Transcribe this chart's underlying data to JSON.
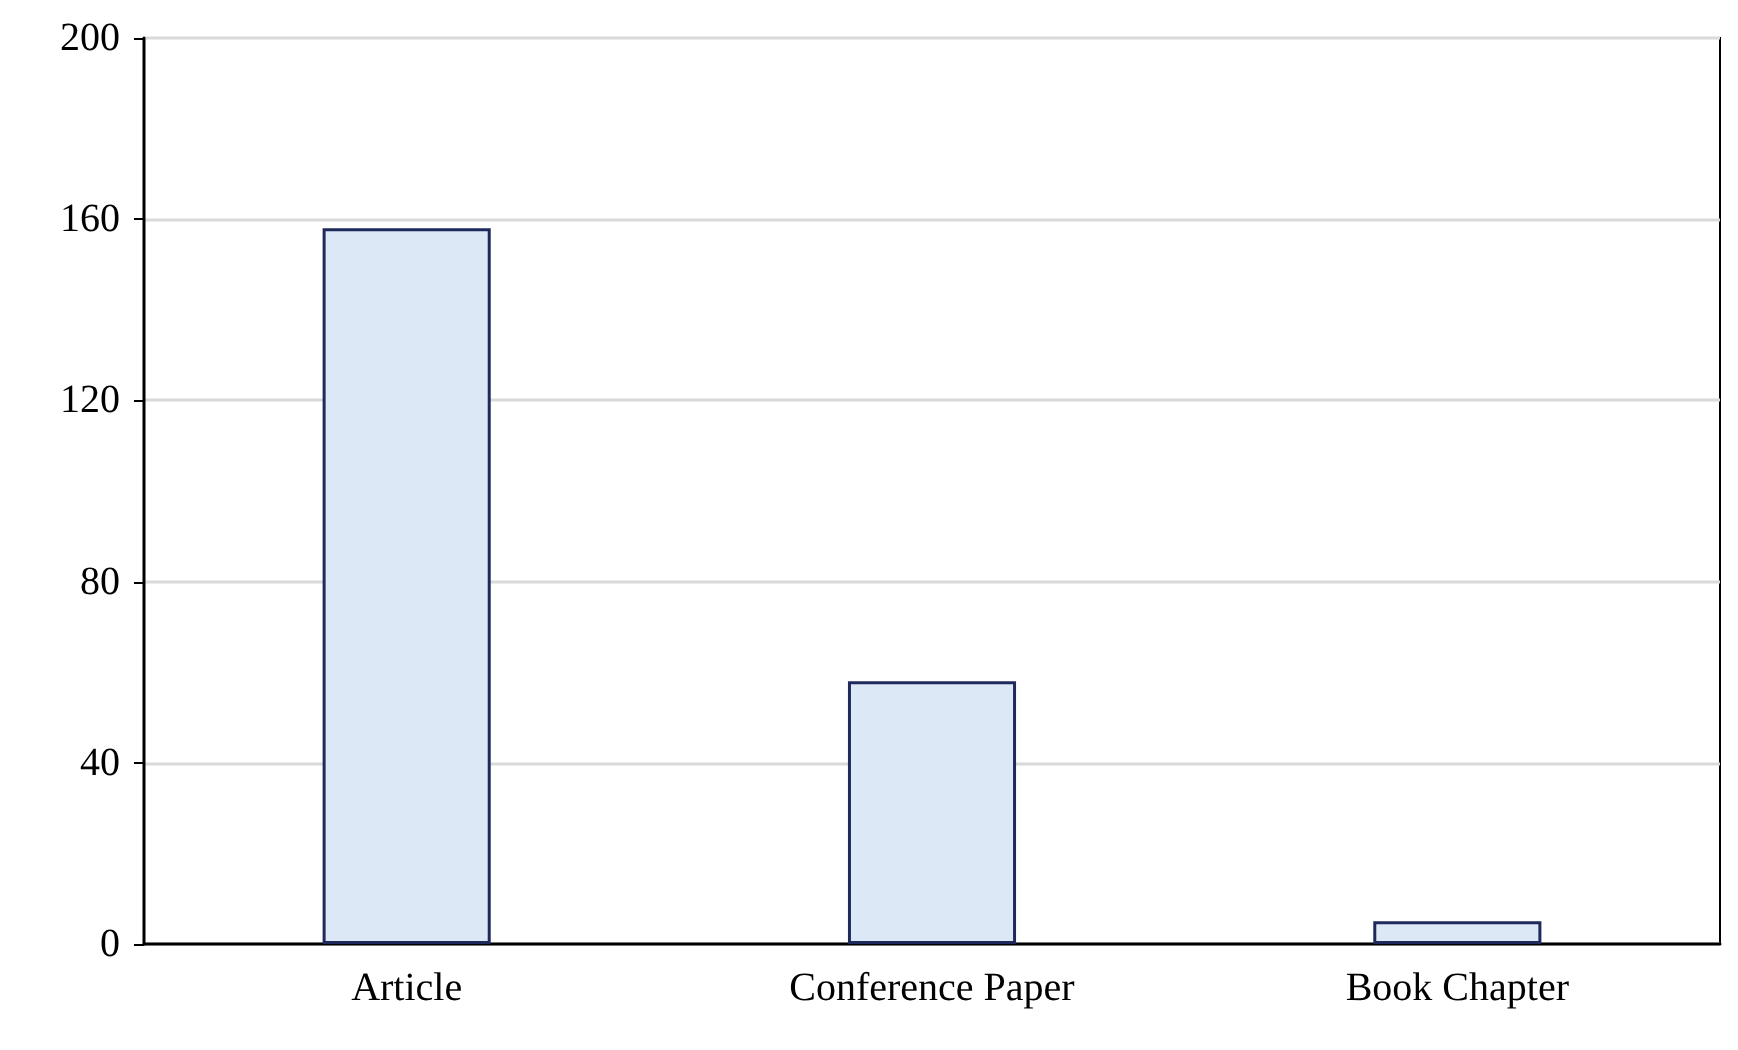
{
  "chart_data": {
    "type": "bar",
    "categories": [
      "Article",
      "Conference Paper",
      "Book Chapter"
    ],
    "values": [
      158,
      58,
      5
    ],
    "color": "#dde8f7",
    "ylim": [
      0,
      200
    ],
    "yticks": [
      0,
      40,
      80,
      120,
      160,
      200
    ],
    "grid": "y"
  }
}
